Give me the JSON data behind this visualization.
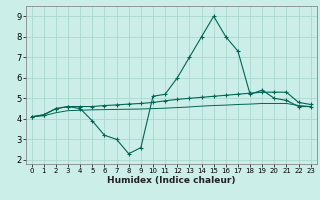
{
  "xlabel": "Humidex (Indice chaleur)",
  "bg_color": "#cceee8",
  "grid_color": "#aad8d0",
  "line_color": "#006655",
  "xlim": [
    -0.5,
    23.5
  ],
  "ylim": [
    1.8,
    9.5
  ],
  "yticks": [
    2,
    3,
    4,
    5,
    6,
    7,
    8,
    9
  ],
  "xticks": [
    0,
    1,
    2,
    3,
    4,
    5,
    6,
    7,
    8,
    9,
    10,
    11,
    12,
    13,
    14,
    15,
    16,
    17,
    18,
    19,
    20,
    21,
    22,
    23
  ],
  "line1_x": [
    0,
    1,
    2,
    3,
    4,
    5,
    6,
    7,
    8,
    9,
    10,
    11,
    12,
    13,
    14,
    15,
    16,
    17,
    18,
    19,
    20,
    21,
    22,
    23
  ],
  "line1_y": [
    4.1,
    4.2,
    4.5,
    4.6,
    4.5,
    3.9,
    3.2,
    3.0,
    2.3,
    2.6,
    5.1,
    5.2,
    6.0,
    7.0,
    8.0,
    9.0,
    8.0,
    7.3,
    5.2,
    5.4,
    5.0,
    4.9,
    4.6,
    4.6
  ],
  "line2_x": [
    0,
    1,
    2,
    3,
    4,
    5,
    6,
    7,
    8,
    9,
    10,
    11,
    12,
    13,
    14,
    15,
    16,
    17,
    18,
    19,
    20,
    21,
    22,
    23
  ],
  "line2_y": [
    4.1,
    4.2,
    4.5,
    4.6,
    4.6,
    4.6,
    4.65,
    4.68,
    4.72,
    4.75,
    4.8,
    4.88,
    4.95,
    5.0,
    5.05,
    5.1,
    5.15,
    5.2,
    5.25,
    5.3,
    5.3,
    5.3,
    4.8,
    4.7
  ],
  "line3_x": [
    0,
    1,
    2,
    3,
    4,
    5,
    6,
    7,
    8,
    9,
    10,
    11,
    12,
    13,
    14,
    15,
    16,
    17,
    18,
    19,
    20,
    21,
    22,
    23
  ],
  "line3_y": [
    4.1,
    4.15,
    4.3,
    4.4,
    4.42,
    4.44,
    4.45,
    4.46,
    4.47,
    4.48,
    4.5,
    4.52,
    4.55,
    4.58,
    4.62,
    4.65,
    4.67,
    4.7,
    4.72,
    4.75,
    4.75,
    4.75,
    4.65,
    4.6
  ]
}
